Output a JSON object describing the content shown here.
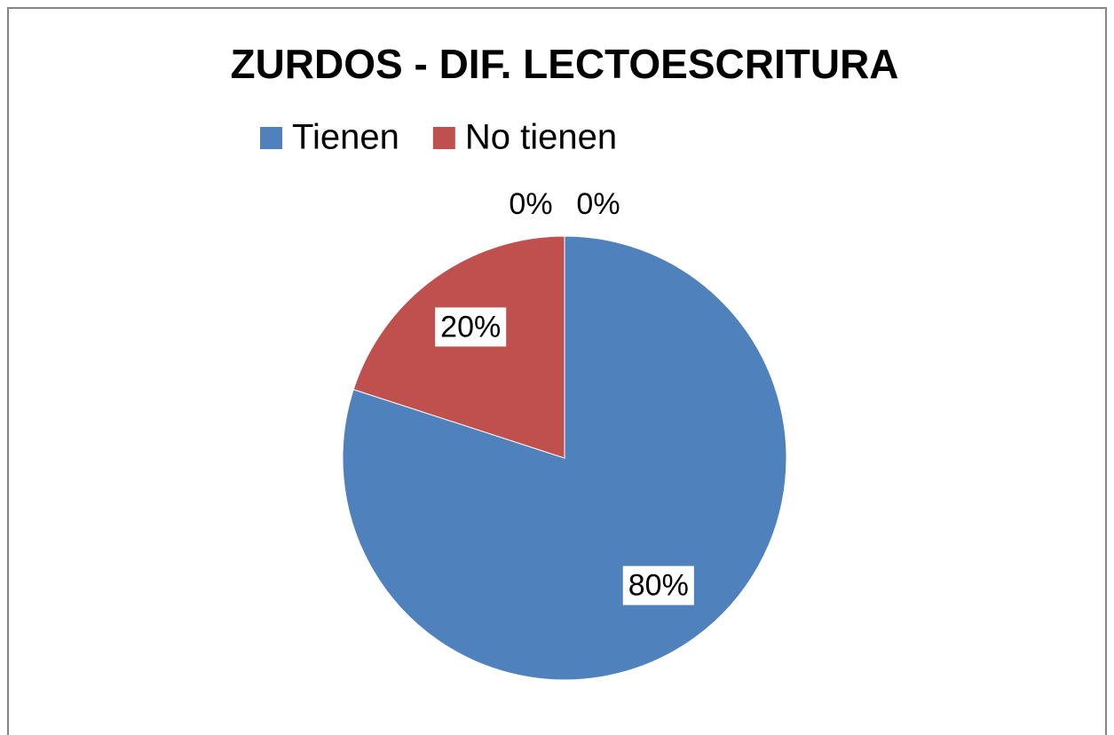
{
  "chart_data": {
    "type": "pie",
    "title": "ZURDOS - DIF. LECTOESCRITURA",
    "categories": [
      "Tienen",
      "No tienen",
      null,
      null
    ],
    "values": [
      80,
      20,
      0,
      0
    ],
    "value_labels": [
      "80%",
      "20%",
      "0%",
      "0%"
    ],
    "colors": [
      "#4f81bd",
      "#c0504d",
      "#9bbb59",
      "#8064a2"
    ],
    "legend": "top"
  }
}
